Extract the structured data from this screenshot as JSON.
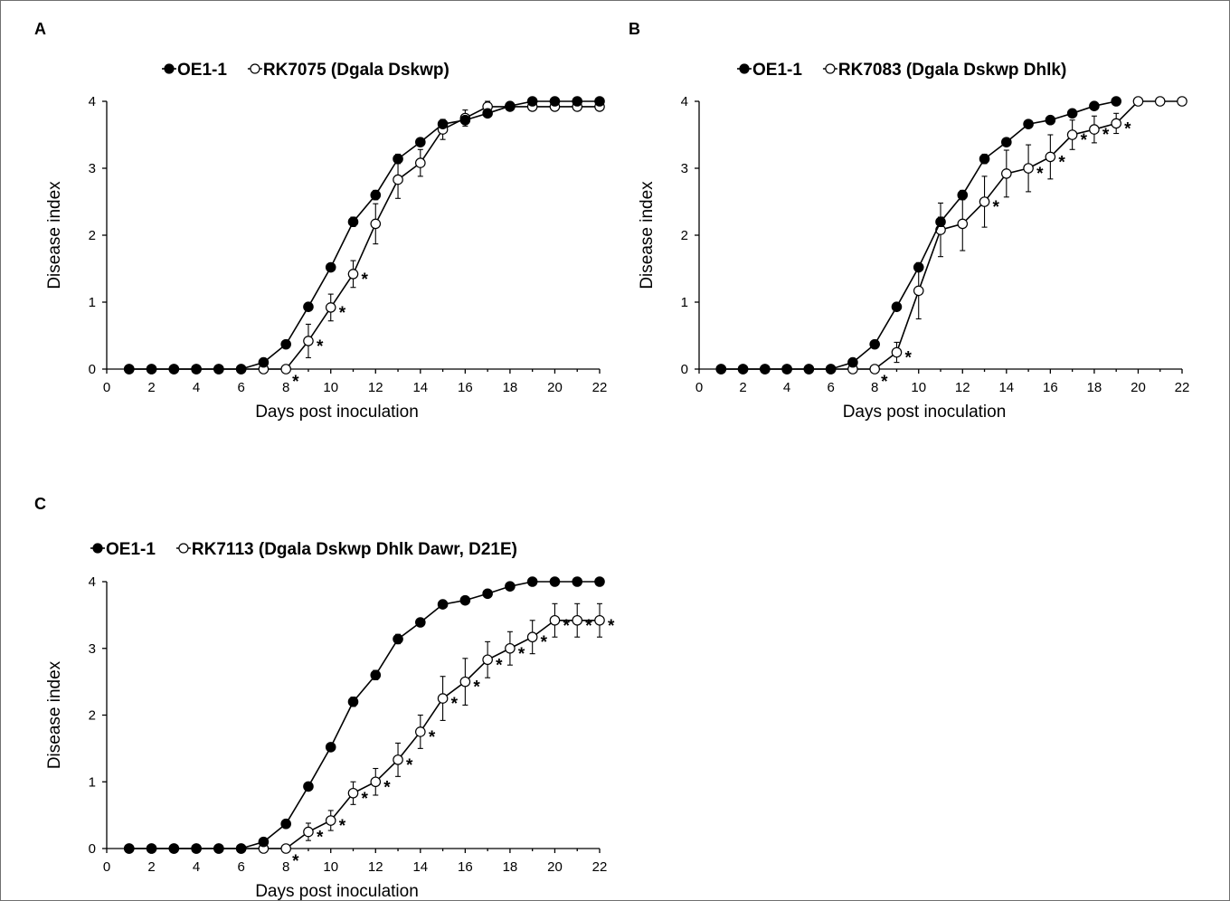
{
  "colors": {
    "filled": "#000000",
    "open": "#ffffff",
    "line": "#000000"
  },
  "chart_data": [
    {
      "type": "line",
      "panel": "A",
      "xlabel": "Days post inoculation",
      "ylabel": "Disease index",
      "xlim": [
        0,
        22
      ],
      "ylim": [
        0,
        4
      ],
      "xticks": [
        "0",
        "2",
        "4",
        "6",
        "8",
        "10",
        "12",
        "14",
        "16",
        "18",
        "20",
        "22"
      ],
      "yticks": [
        "0",
        "1",
        "2",
        "3",
        "4"
      ],
      "legend_placement": "top-center",
      "series": [
        {
          "name": "OE1-1",
          "marker": "filled-circle",
          "x": [
            1,
            2,
            3,
            4,
            5,
            6,
            7,
            8,
            9,
            10,
            11,
            12,
            13,
            14,
            15,
            16,
            17,
            18,
            19,
            20,
            21,
            22
          ],
          "y": [
            0,
            0,
            0,
            0,
            0,
            0,
            0.1,
            0.37,
            0.93,
            1.52,
            2.2,
            2.6,
            3.14,
            3.39,
            3.66,
            3.72,
            3.82,
            3.93,
            4.0,
            4.0,
            4.0,
            4.0
          ],
          "err": [
            0,
            0,
            0,
            0,
            0,
            0,
            0.03,
            0.04,
            0.05,
            0.05,
            0.07,
            0.07,
            0.07,
            0.06,
            0.05,
            0.05,
            0.04,
            0.03,
            0,
            0,
            0,
            0
          ]
        },
        {
          "name": "RK7075 (Dgala Dskwp)",
          "marker": "open-circle",
          "x": [
            1,
            2,
            3,
            4,
            5,
            6,
            7,
            8,
            9,
            10,
            11,
            12,
            13,
            14,
            15,
            16,
            17,
            18,
            19,
            20,
            21,
            22
          ],
          "y": [
            0,
            0,
            0,
            0,
            0,
            0,
            0,
            0,
            0.42,
            0.92,
            1.42,
            2.17,
            2.83,
            3.08,
            3.58,
            3.75,
            3.92,
            3.92,
            3.92,
            3.92,
            3.92,
            3.92
          ],
          "err": [
            0,
            0,
            0,
            0,
            0,
            0,
            0,
            0,
            0.25,
            0.2,
            0.2,
            0.3,
            0.28,
            0.2,
            0.15,
            0.12,
            0.08,
            0.06,
            0.06,
            0.06,
            0.06,
            0.06
          ],
          "significant": [
            9,
            10,
            11
          ]
        }
      ],
      "asterisks_below_axis": [
        8
      ]
    },
    {
      "type": "line",
      "panel": "B",
      "xlabel": "Days post inoculation",
      "ylabel": "Disease index",
      "xlim": [
        0,
        22
      ],
      "ylim": [
        0,
        4
      ],
      "xticks": [
        "0",
        "2",
        "4",
        "6",
        "8",
        "10",
        "12",
        "14",
        "16",
        "18",
        "20",
        "22"
      ],
      "yticks": [
        "0",
        "1",
        "2",
        "3",
        "4"
      ],
      "legend_placement": "top-center",
      "series": [
        {
          "name": "OE1-1",
          "marker": "filled-circle",
          "x": [
            1,
            2,
            3,
            4,
            5,
            6,
            7,
            8,
            9,
            10,
            11,
            12,
            13,
            14,
            15,
            16,
            17,
            18,
            19
          ],
          "y": [
            0,
            0,
            0,
            0,
            0,
            0,
            0.1,
            0.37,
            0.93,
            1.52,
            2.2,
            2.6,
            3.14,
            3.39,
            3.66,
            3.72,
            3.82,
            3.93,
            4.0
          ],
          "err": [
            0,
            0,
            0,
            0,
            0,
            0,
            0.03,
            0.04,
            0.05,
            0.05,
            0.07,
            0.07,
            0.07,
            0.06,
            0.05,
            0.05,
            0.04,
            0.03,
            0
          ]
        },
        {
          "name": "RK7083 (Dgala Dskwp Dhlk)",
          "marker": "open-circle",
          "x": [
            1,
            2,
            3,
            4,
            5,
            6,
            7,
            8,
            9,
            10,
            11,
            12,
            13,
            14,
            15,
            16,
            17,
            18,
            19,
            20,
            21,
            22
          ],
          "y": [
            0,
            0,
            0,
            0,
            0,
            0,
            0,
            0,
            0.25,
            1.17,
            2.08,
            2.17,
            2.5,
            2.92,
            3.0,
            3.17,
            3.5,
            3.58,
            3.67,
            4.0,
            4.0,
            4.0
          ],
          "err": [
            0,
            0,
            0,
            0,
            0,
            0,
            0,
            0,
            0.15,
            0.42,
            0.4,
            0.4,
            0.38,
            0.35,
            0.35,
            0.33,
            0.22,
            0.2,
            0.15,
            0,
            0,
            0
          ],
          "significant": [
            9,
            13,
            15,
            16,
            17,
            18,
            19
          ]
        }
      ],
      "asterisks_below_axis": [
        8
      ]
    },
    {
      "type": "line",
      "panel": "C",
      "xlabel": "Days post inoculation",
      "ylabel": "Disease index",
      "xlim": [
        0,
        22
      ],
      "ylim": [
        0,
        4
      ],
      "xticks": [
        "0",
        "2",
        "4",
        "6",
        "8",
        "10",
        "12",
        "14",
        "16",
        "18",
        "20",
        "22"
      ],
      "yticks": [
        "0",
        "1",
        "2",
        "3",
        "4"
      ],
      "legend_placement": "top-left",
      "series": [
        {
          "name": "OE1-1",
          "marker": "filled-circle",
          "x": [
            1,
            2,
            3,
            4,
            5,
            6,
            7,
            8,
            9,
            10,
            11,
            12,
            13,
            14,
            15,
            16,
            17,
            18,
            19,
            20,
            21,
            22
          ],
          "y": [
            0,
            0,
            0,
            0,
            0,
            0,
            0.1,
            0.37,
            0.93,
            1.52,
            2.2,
            2.6,
            3.14,
            3.39,
            3.66,
            3.72,
            3.82,
            3.93,
            4.0,
            4.0,
            4.0,
            4.0
          ],
          "err": [
            0,
            0,
            0,
            0,
            0,
            0,
            0.03,
            0.04,
            0.05,
            0.05,
            0.07,
            0.07,
            0.07,
            0.06,
            0.05,
            0.05,
            0.04,
            0.03,
            0,
            0,
            0,
            0
          ]
        },
        {
          "name": "RK7113 (Dgala Dskwp Dhlk Dawr, D21E)",
          "marker": "open-circle",
          "x": [
            1,
            2,
            3,
            4,
            5,
            6,
            7,
            8,
            9,
            10,
            11,
            12,
            13,
            14,
            15,
            16,
            17,
            18,
            19,
            20,
            21,
            22
          ],
          "y": [
            0,
            0,
            0,
            0,
            0,
            0,
            0,
            0,
            0.25,
            0.42,
            0.83,
            1.0,
            1.33,
            1.75,
            2.25,
            2.5,
            2.83,
            3.0,
            3.17,
            3.42,
            3.42,
            3.42
          ],
          "err": [
            0,
            0,
            0,
            0,
            0,
            0,
            0,
            0,
            0.13,
            0.15,
            0.17,
            0.2,
            0.25,
            0.25,
            0.33,
            0.35,
            0.27,
            0.25,
            0.25,
            0.25,
            0.25,
            0.25
          ],
          "significant": [
            9,
            10,
            11,
            12,
            13,
            14,
            15,
            16,
            17,
            18,
            19,
            20,
            21,
            22
          ]
        }
      ],
      "asterisks_below_axis": [
        8
      ]
    }
  ]
}
